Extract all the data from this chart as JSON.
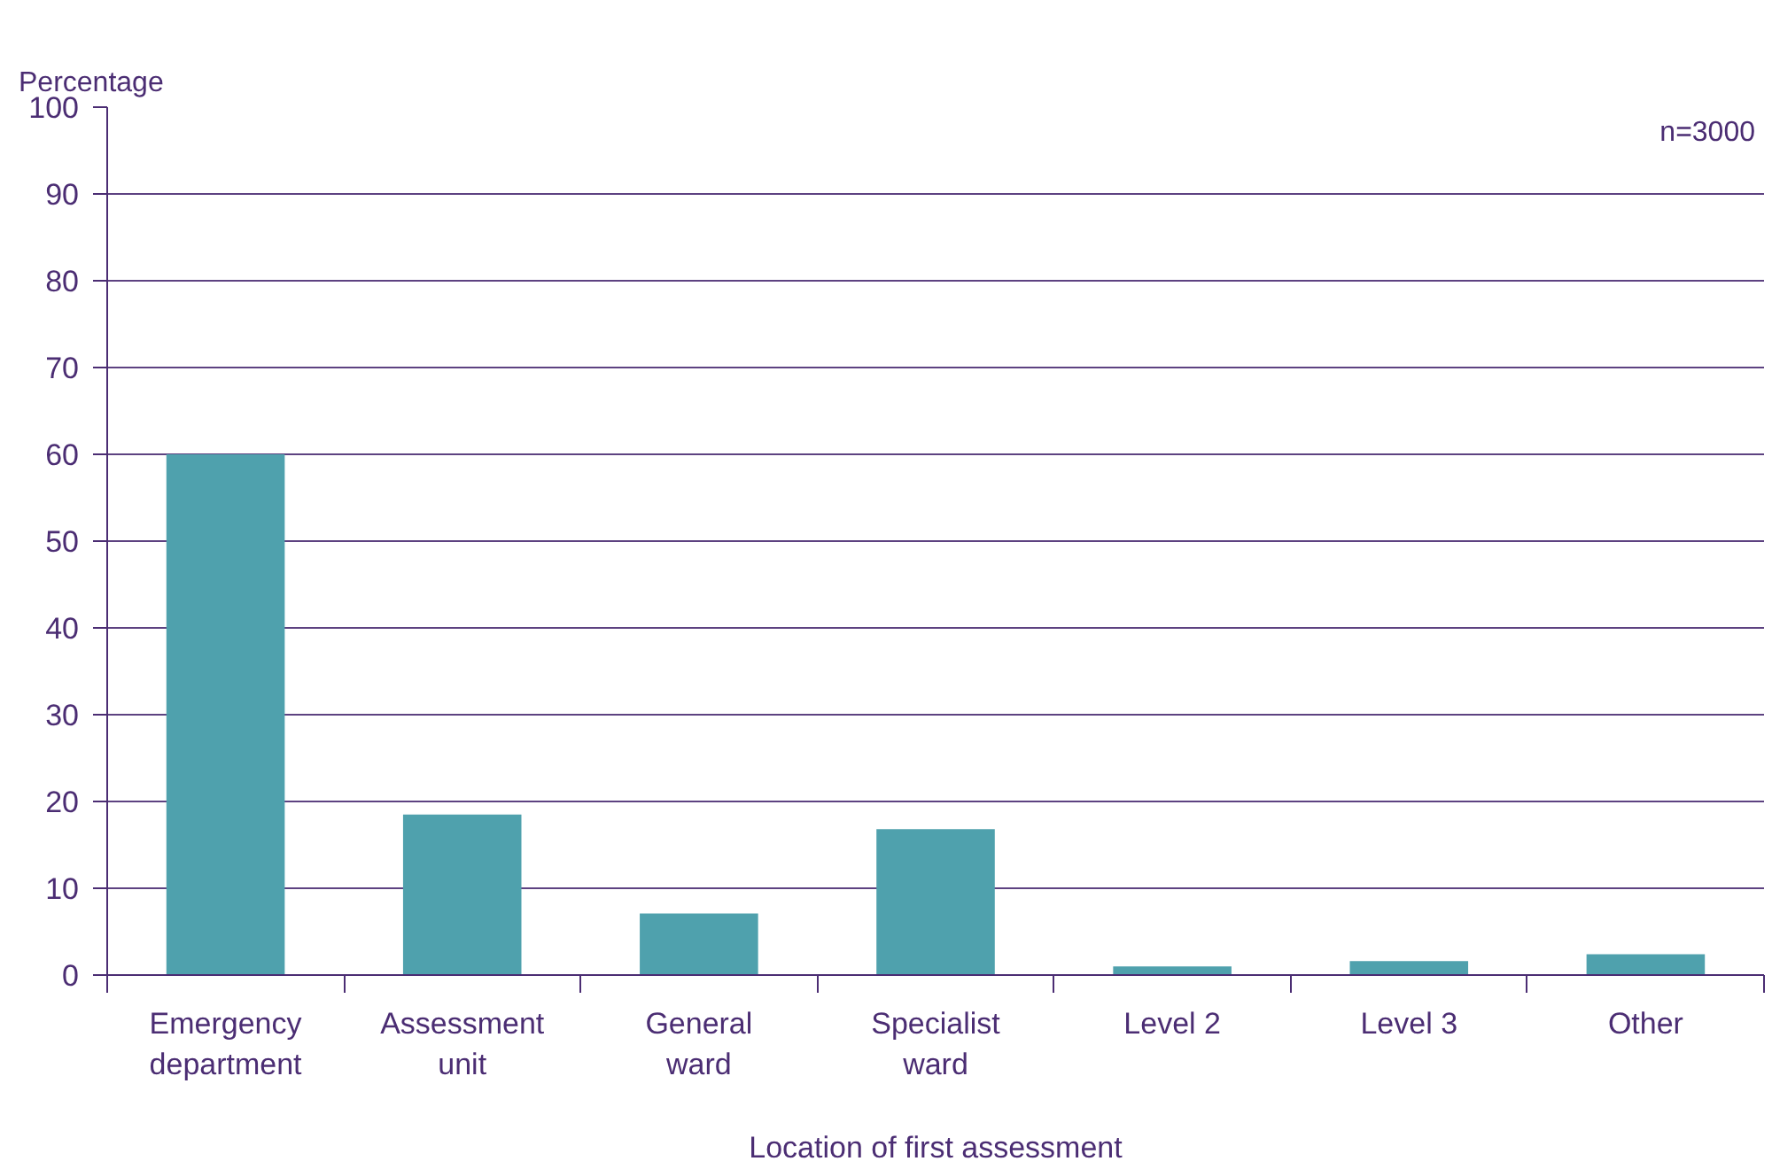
{
  "chart_data": {
    "type": "bar",
    "ylabel": "Percentage",
    "xlabel": "Location of first assessment",
    "categories": [
      "Emergency department",
      "Assessment unit",
      "General ward",
      "Specialist ward",
      "Level 2",
      "Level 3",
      "Other"
    ],
    "values": [
      60,
      18.5,
      7.1,
      16.8,
      1.0,
      1.6,
      2.4
    ],
    "color": "#4fa1ad",
    "ylim": [
      0,
      100
    ],
    "yticks": [
      0,
      10,
      20,
      30,
      40,
      50,
      60,
      70,
      80,
      90,
      100
    ],
    "grid": "y",
    "annotations": [
      "n=3000"
    ]
  }
}
